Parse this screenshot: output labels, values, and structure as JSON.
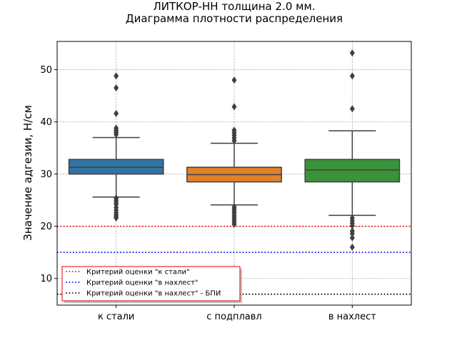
{
  "chart_data": {
    "type": "box",
    "title": [
      "ЛИТКОР-НН толщина 2.0 мм.",
      "Диаграмма плотности распределения"
    ],
    "xlabel": "",
    "ylabel": "Значение адгезии, Н/см",
    "ylim": [
      4.9,
      55.4
    ],
    "yticks": [
      10,
      20,
      30,
      40,
      50
    ],
    "grid": true,
    "legend_position": "lower-left",
    "categories": [
      "к стали",
      "с подплавл",
      "в нахлест"
    ],
    "boxes": [
      {
        "category": "к стали",
        "color": "#3274a1",
        "whisker_low": 25.6,
        "q1": 30.0,
        "median": 31.3,
        "q3": 32.8,
        "whisker_high": 37.0,
        "outliers": [
          48.8,
          46.5,
          41.6,
          38.8,
          38.4,
          38.0,
          37.6,
          25.4,
          25.0,
          24.6,
          24.2,
          23.6,
          23.1,
          22.6,
          22.2,
          21.9,
          21.6
        ]
      },
      {
        "category": "с подплавл",
        "color": "#e1812c",
        "whisker_low": 24.1,
        "q1": 28.5,
        "median": 29.9,
        "q3": 31.3,
        "whisker_high": 35.9,
        "outliers": [
          48.0,
          42.9,
          38.4,
          37.9,
          37.4,
          36.9,
          36.4,
          23.7,
          23.3,
          22.9,
          22.5,
          22.0,
          21.6,
          21.2,
          20.8,
          20.4
        ]
      },
      {
        "category": "в нахлест",
        "color": "#3a923a",
        "whisker_low": 22.1,
        "q1": 28.5,
        "median": 30.8,
        "q3": 32.8,
        "whisker_high": 38.3,
        "outliers": [
          53.2,
          48.8,
          42.5,
          21.6,
          21.1,
          20.6,
          20.1,
          19.1,
          18.6,
          17.8,
          16.0
        ]
      }
    ],
    "reference_lines": [
      {
        "label": "Критерий оценки \"к стали\"",
        "y": 20,
        "color": "#ff0000"
      },
      {
        "label": "Критерий оценки \"в нахлест\"",
        "y": 15,
        "color": "#0000ff"
      },
      {
        "label": "Критерий оценки \"в нахлест\" - БПИ",
        "y": 7,
        "color": "#000000"
      }
    ]
  }
}
